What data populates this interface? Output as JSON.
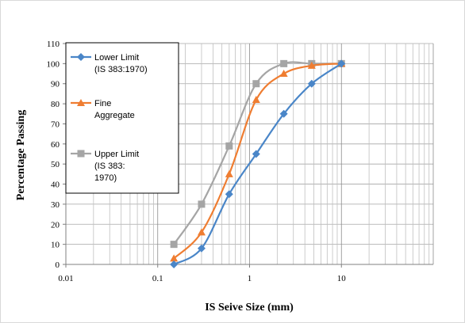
{
  "chart_data": {
    "type": "line",
    "title": "",
    "xlabel": "IS Seive Size (mm)",
    "ylabel": "Percentage Passing",
    "xscale": "log",
    "xlim": [
      0.01,
      100
    ],
    "ylim": [
      0,
      110
    ],
    "xticks": [
      "0.01",
      "0.1",
      "1",
      "10"
    ],
    "yticks": [
      "0",
      "10",
      "20",
      "30",
      "40",
      "50",
      "60",
      "70",
      "80",
      "90",
      "100",
      "110"
    ],
    "grid": true,
    "legend_position": "top-left",
    "series": [
      {
        "name": "Lower Limit (IS 383:1970)",
        "legend_lines": [
          "Lower Limit",
          "(IS 383:1970)"
        ],
        "color": "#4a86c8",
        "marker": "diamond",
        "x": [
          0.15,
          0.3,
          0.6,
          1.18,
          2.36,
          4.75,
          10
        ],
        "y": [
          0,
          8,
          35,
          55,
          75,
          90,
          100
        ]
      },
      {
        "name": "Fine Aggregate",
        "legend_lines": [
          "Fine",
          "Aggregate"
        ],
        "color": "#ef7d31",
        "marker": "triangle",
        "x": [
          0.15,
          0.3,
          0.6,
          1.18,
          2.36,
          4.75,
          10
        ],
        "y": [
          3,
          16,
          45,
          82,
          95,
          99,
          100
        ]
      },
      {
        "name": "Upper Limit (IS 383: 1970)",
        "legend_lines": [
          "Upper Limit",
          "(IS 383:",
          "1970)"
        ],
        "color": "#a5a5a5",
        "marker": "square",
        "x": [
          0.15,
          0.3,
          0.6,
          1.18,
          2.36,
          4.75,
          10
        ],
        "y": [
          10,
          30,
          59,
          90,
          100,
          100,
          100
        ]
      }
    ]
  }
}
